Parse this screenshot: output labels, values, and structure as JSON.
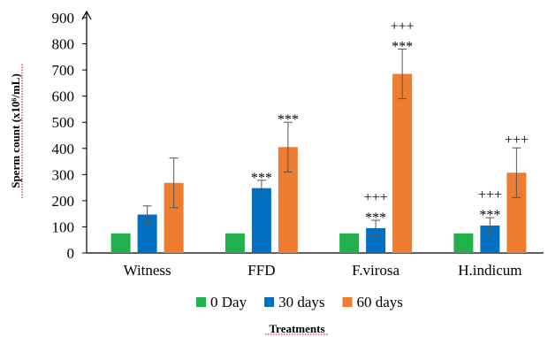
{
  "chart_data": {
    "type": "bar",
    "title": "",
    "xlabel": "Treatments",
    "ylabel": "Sperm count (x10⁶/mL)",
    "ylim": [
      0,
      900
    ],
    "yticks": [
      0,
      100,
      200,
      300,
      400,
      500,
      600,
      700,
      800,
      900
    ],
    "categories": [
      "Witness",
      "FFD",
      "F.virosa",
      "H.indicum"
    ],
    "series": [
      {
        "name": "0 Day",
        "color": "#22b14c",
        "values": [
          75,
          75,
          75,
          75
        ],
        "errors": [
          0,
          0,
          0,
          0
        ]
      },
      {
        "name": "30 days",
        "color": "#0070c0",
        "values": [
          147,
          248,
          95,
          105
        ],
        "errors": [
          33,
          30,
          30,
          30
        ]
      },
      {
        "name": "60 days",
        "color": "#ed7d31",
        "values": [
          268,
          405,
          685,
          307
        ],
        "errors": [
          95,
          95,
          95,
          95
        ]
      }
    ],
    "significance": [
      {
        "category": "FFD",
        "series": "30 days",
        "lines": [
          "***"
        ]
      },
      {
        "category": "FFD",
        "series": "60 days",
        "lines": [
          "***"
        ]
      },
      {
        "category": "F.virosa",
        "series": "30 days",
        "lines": [
          "+++",
          "***"
        ]
      },
      {
        "category": "F.virosa",
        "series": "60 days",
        "lines": [
          "+++",
          "***"
        ]
      },
      {
        "category": "H.indicum",
        "series": "30 days",
        "lines": [
          "+++",
          "***"
        ]
      },
      {
        "category": "H.indicum",
        "series": "60 days",
        "lines": [
          "+++"
        ]
      }
    ],
    "legend_position": "bottom",
    "grid": false
  }
}
